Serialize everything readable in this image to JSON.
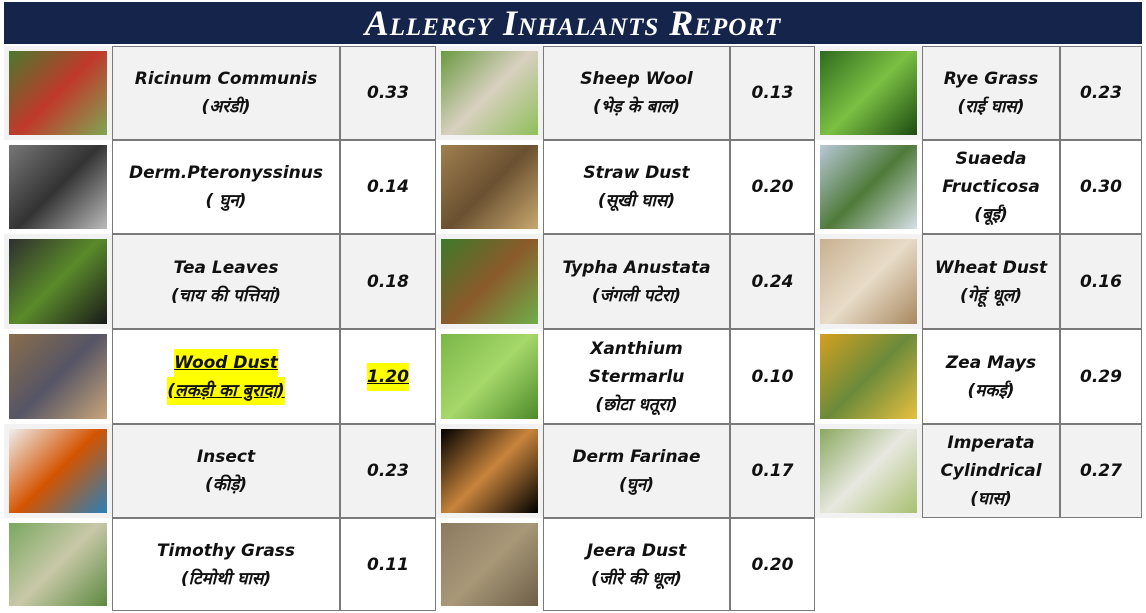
{
  "header": {
    "title": "Allergy Inhalants Report"
  },
  "groups": [
    {
      "items": [
        {
          "name": "Ricinum Communis",
          "local": "(अरंडी)",
          "value": "0.33"
        },
        {
          "name": "Derm.Pteronyssinus",
          "local": "( घुन)",
          "value": "0.14"
        },
        {
          "name": "Tea Leaves",
          "local": "(चाय की पत्तियां)",
          "value": "0.18"
        },
        {
          "name": "Wood Dust",
          "local": "(लकड़ी का बुरादा)",
          "value": "1.20",
          "highlight": true
        },
        {
          "name": "Insect",
          "local": "(कीड़े)",
          "value": "0.23"
        },
        {
          "name": "Timothy Grass",
          "local": "(टिमोथी घास)",
          "value": "0.11"
        }
      ]
    },
    {
      "items": [
        {
          "name": "Sheep Wool",
          "local": "(भेड़ के बाल)",
          "value": "0.13"
        },
        {
          "name": "Straw Dust",
          "local": "(सूखी घास)",
          "value": "0.20"
        },
        {
          "name": "Typha Anustata",
          "local": "(जंगली पटेरा)",
          "value": "0.24"
        },
        {
          "name": "Xanthium Stermarlu",
          "local": "(छोटा धतूरा)",
          "value": "0.10"
        },
        {
          "name": "Derm Farinae",
          "local": "(घुन)",
          "value": "0.17"
        },
        {
          "name": "Jeera Dust",
          "local": "(जीरे की धूल)",
          "value": "0.20"
        }
      ]
    },
    {
      "items": [
        {
          "name": "Rye Grass",
          "local": "(राई घास)",
          "value": "0.23"
        },
        {
          "name": "Suaeda Fructicosa",
          "local": "(बूई)",
          "value": "0.30"
        },
        {
          "name": "Wheat Dust",
          "local": "(गेहूं धूल)",
          "value": "0.16"
        },
        {
          "name": "Zea Mays",
          "local": "(मकई)",
          "value": "0.29"
        },
        {
          "name": "Imperata Cylindrical",
          "local": "(घास)",
          "value": "0.27"
        }
      ]
    }
  ]
}
